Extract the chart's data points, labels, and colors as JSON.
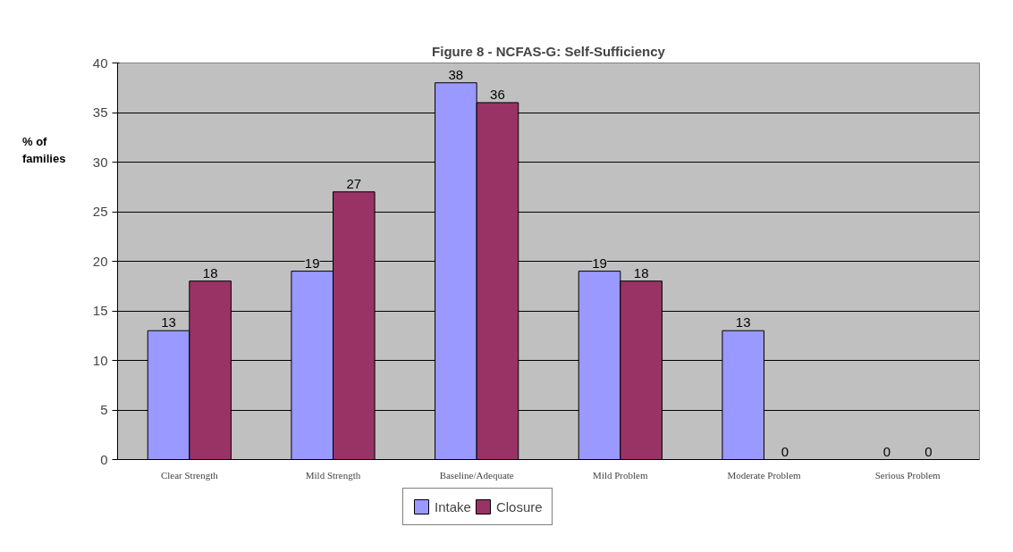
{
  "chart_data": {
    "type": "bar",
    "title": "Figure 8 - NCFAS-G: Self-Sufficiency",
    "ylabel": "% of families",
    "categories": [
      "Clear Strength",
      "Mild Strength",
      "Baseline/Adequate",
      "Mild Problem",
      "Moderate Problem",
      "Serious Problem"
    ],
    "series": [
      {
        "name": "Intake",
        "color": "#9999ff",
        "values": [
          13,
          19,
          38,
          19,
          13,
          0
        ]
      },
      {
        "name": "Closure",
        "color": "#993366",
        "values": [
          18,
          27,
          36,
          18,
          0,
          0
        ]
      }
    ],
    "ylim": [
      0,
      40
    ],
    "yticks": [
      0,
      5,
      10,
      15,
      20,
      25,
      30,
      35,
      40
    ],
    "grid": "y",
    "legend": "bottom",
    "data_labels": true
  }
}
